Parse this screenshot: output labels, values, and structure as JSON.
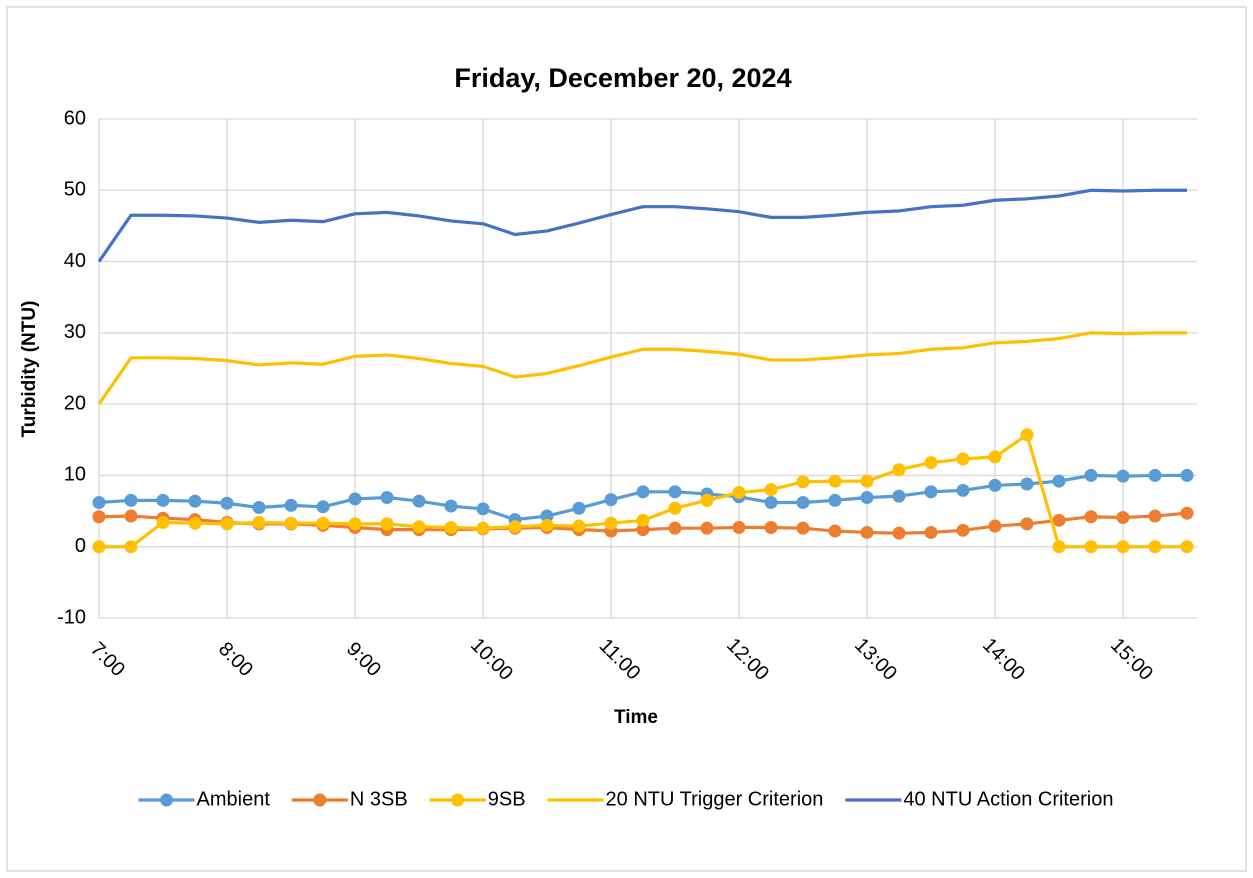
{
  "chart_data": {
    "type": "line",
    "title": "Friday, December 20, 2024",
    "x_label": "Time",
    "y_label": "Turbidity (NTU)",
    "x": [
      7,
      7.25,
      7.5,
      7.75,
      8,
      8.25,
      8.5,
      8.75,
      9,
      9.25,
      9.5,
      9.75,
      10,
      10.25,
      10.5,
      10.75,
      11,
      11.25,
      11.5,
      11.75,
      12,
      12.25,
      12.5,
      12.75,
      13,
      13.25,
      13.5,
      13.75,
      14,
      14.25,
      14.5,
      14.75,
      15,
      15.25,
      15.5
    ],
    "xlim": [
      7,
      15.58
    ],
    "xticks": [
      {
        "value": 7,
        "label": "7:00"
      },
      {
        "value": 8,
        "label": "8:00"
      },
      {
        "value": 9,
        "label": "9:00"
      },
      {
        "value": 10,
        "label": "10:00"
      },
      {
        "value": 11,
        "label": "11:00"
      },
      {
        "value": 12,
        "label": "12:00"
      },
      {
        "value": 13,
        "label": "13:00"
      },
      {
        "value": 14,
        "label": "14:00"
      },
      {
        "value": 15,
        "label": "15:00"
      }
    ],
    "ylim": [
      -10,
      60
    ],
    "yticks": [
      -10,
      0,
      10,
      20,
      30,
      40,
      50,
      60
    ],
    "grid": true,
    "legend": "bottom",
    "series": [
      {
        "name": "Ambient",
        "color": "#5b9bd5",
        "markers": true,
        "values": [
          6.2,
          6.5,
          6.5,
          6.4,
          6.1,
          5.5,
          5.8,
          5.6,
          6.7,
          6.9,
          6.4,
          5.7,
          5.3,
          3.8,
          4.3,
          5.4,
          6.6,
          7.7,
          7.7,
          7.4,
          7.0,
          6.2,
          6.2,
          6.5,
          6.9,
          7.1,
          7.7,
          7.9,
          8.6,
          8.8,
          9.2,
          10.0,
          9.9,
          10.0,
          10.0
        ]
      },
      {
        "name": "N 3SB",
        "color": "#ed7d31",
        "markers": true,
        "values": [
          4.2,
          4.3,
          4.0,
          3.8,
          3.4,
          3.2,
          3.2,
          3.0,
          2.7,
          2.4,
          2.4,
          2.4,
          2.5,
          2.6,
          2.7,
          2.4,
          2.2,
          2.4,
          2.6,
          2.6,
          2.7,
          2.7,
          2.6,
          2.2,
          2.0,
          1.9,
          2.0,
          2.3,
          2.9,
          3.2,
          3.7,
          4.2,
          4.1,
          4.3,
          4.7
        ]
      },
      {
        "name": "9SB",
        "color": "#ffc000",
        "markers": true,
        "values": [
          0,
          0,
          3.4,
          3.3,
          3.2,
          3.4,
          3.3,
          3.3,
          3.2,
          3.2,
          2.8,
          2.7,
          2.6,
          2.8,
          3.0,
          2.9,
          3.3,
          3.7,
          5.4,
          6.5,
          7.6,
          8.0,
          9.1,
          9.2,
          9.2,
          10.8,
          11.8,
          12.3,
          12.6,
          15.7,
          0,
          0,
          0,
          0,
          0
        ]
      },
      {
        "name": "20 NTU Trigger Criterion",
        "color": "#ffc000",
        "markers": false,
        "values": [
          20.0,
          26.5,
          26.5,
          26.4,
          26.1,
          25.5,
          25.8,
          25.6,
          26.7,
          26.9,
          26.4,
          25.7,
          25.3,
          23.8,
          24.3,
          25.4,
          26.6,
          27.7,
          27.7,
          27.4,
          27.0,
          26.2,
          26.2,
          26.5,
          26.9,
          27.1,
          27.7,
          27.9,
          28.6,
          28.8,
          29.2,
          30.0,
          29.9,
          30.0,
          30.0
        ]
      },
      {
        "name": "40 NTU Action Criterion",
        "color": "#4472c4",
        "markers": false,
        "values": [
          40.0,
          46.5,
          46.5,
          46.4,
          46.1,
          45.5,
          45.8,
          45.6,
          46.7,
          46.9,
          46.4,
          45.7,
          45.3,
          43.8,
          44.3,
          45.4,
          46.6,
          47.7,
          47.7,
          47.4,
          47.0,
          46.2,
          46.2,
          46.5,
          46.9,
          47.1,
          47.7,
          47.9,
          48.6,
          48.8,
          49.2,
          50.0,
          49.9,
          50.0,
          50.0
        ]
      }
    ]
  }
}
